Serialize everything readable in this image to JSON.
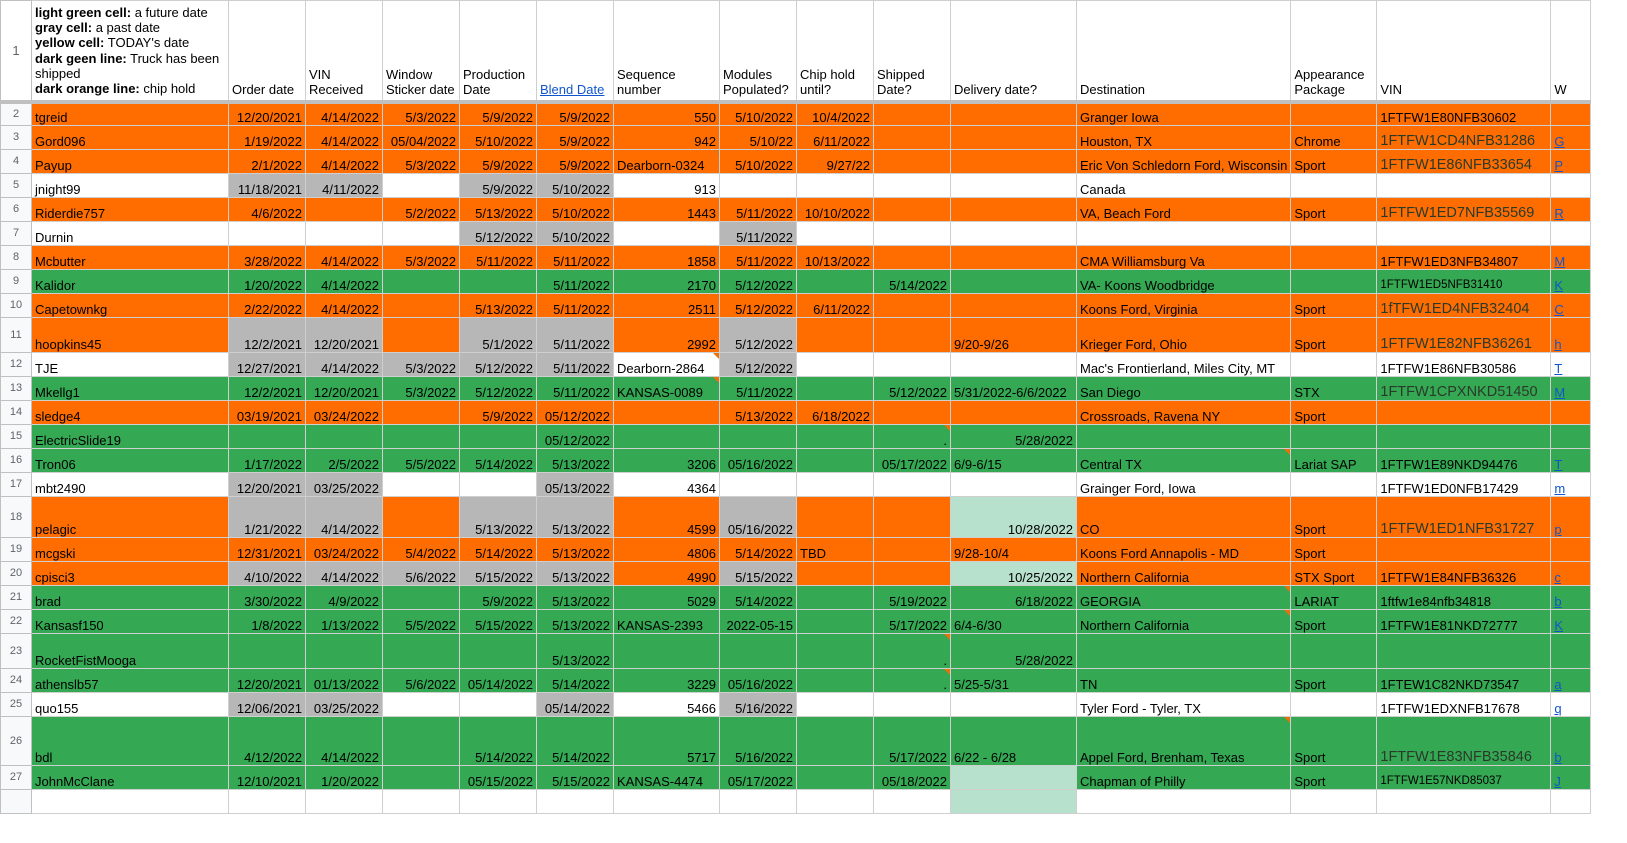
{
  "legend": [
    {
      "key": "light green cell:",
      "text": " a future date"
    },
    {
      "key": "gray cell:",
      "text": " a past date"
    },
    {
      "key": "yellow cell:",
      "text": " TODAY's date"
    },
    {
      "key": "dark geen line:",
      "text": " Truck has been shipped"
    },
    {
      "key": "dark orange line:",
      "text": " chip hold"
    }
  ],
  "headers": [
    "Order date",
    "VIN Received",
    "Window Sticker date",
    "Production Date",
    "Blend Date",
    "Sequence number",
    "Modules Populated?",
    "Chip hold until?",
    "Shipped Date?",
    "Delivery date?",
    "Destination",
    "Appearance Package",
    "VIN",
    "W"
  ],
  "colors": {
    "orange": "#ff6d01",
    "green": "#34a853",
    "gray": "#b7b7b7",
    "light_green": "#b7e1cd",
    "link": "#1155cc"
  },
  "rows": [
    {
      "num": "2",
      "style": "orange",
      "cells": [
        "tgreid",
        "12/20/2021",
        "4/14/2022",
        "5/3/2022",
        "5/9/2022",
        "5/9/2022",
        "550",
        "5/10/2022",
        "10/4/2022",
        "",
        "",
        "Granger Iowa",
        "",
        "1FTFW1E80NFB30602",
        ""
      ]
    },
    {
      "num": "3",
      "style": "orange",
      "cells": [
        "Gord096",
        "1/19/2022",
        "4/14/2022",
        "05/04/2022",
        "5/10/2022",
        "5/9/2022",
        "942",
        "5/10/22",
        "6/11/2022",
        "",
        "",
        "Houston, TX",
        "Chrome",
        "1FTFW1CD4NFB31286",
        "G"
      ]
    },
    {
      "num": "4",
      "style": "orange",
      "cells": [
        "Payup",
        "2/1/2022",
        "4/14/2022",
        "5/3/2022",
        "5/9/2022",
        "5/9/2022",
        "Dearborn-0324",
        "5/10/2022",
        "9/27/22",
        "",
        "",
        "Eric Von Schledorn Ford, Wisconsin",
        "Sport",
        "1FTFW1E86NFB33654",
        "P"
      ]
    },
    {
      "num": "5",
      "style": "white",
      "cells": [
        "jnight99",
        "11/18/2021",
        "4/11/2022",
        "",
        "5/9/2022",
        "5/10/2022",
        "913",
        "",
        "",
        "",
        "",
        "Canada",
        "",
        "",
        ""
      ]
    },
    {
      "num": "6",
      "style": "orange",
      "cells": [
        "Riderdie757",
        "4/6/2022",
        "",
        "5/2/2022",
        "5/13/2022",
        "5/10/2022",
        "1443",
        "5/11/2022",
        "10/10/2022",
        "",
        "",
        "VA, Beach Ford",
        "Sport",
        "1FTFW1ED7NFB35569",
        "R"
      ]
    },
    {
      "num": "7",
      "style": "white",
      "cells": [
        "Durnin",
        "",
        "",
        "",
        "5/12/2022",
        "5/10/2022",
        "",
        "5/11/2022",
        "",
        "",
        "",
        "",
        "",
        "",
        ""
      ]
    },
    {
      "num": "8",
      "style": "orange",
      "cells": [
        "Mcbutter",
        "3/28/2022",
        "4/14/2022",
        "5/3/2022",
        "5/11/2022",
        "5/11/2022",
        "1858",
        "5/11/2022",
        "10/13/2022",
        "",
        "",
        "CMA Williamsburg Va",
        "",
        "1FTFW1ED3NFB34807",
        "M"
      ]
    },
    {
      "num": "9",
      "style": "green",
      "cells": [
        "Kalidor",
        "1/20/2022",
        "4/14/2022",
        "",
        "",
        "5/11/2022",
        "2170",
        "5/12/2022",
        "",
        "5/14/2022",
        "",
        "VA- Koons Woodbridge",
        "",
        "1FTFW1ED5NFB31410",
        "K"
      ]
    },
    {
      "num": "10",
      "style": "orange",
      "cells": [
        "Capetownkg",
        "2/22/2022",
        "4/14/2022",
        "",
        "5/13/2022",
        "5/11/2022",
        "2511",
        "5/12/2022",
        "6/11/2022",
        "",
        "",
        "Koons Ford, Virginia",
        "Sport",
        "1fTFW1ED4NFB32404",
        "C"
      ]
    },
    {
      "num": "11",
      "style": "orange",
      "cells": [
        "hoopkins45",
        "12/2/2021",
        "12/20/2021",
        "",
        "5/1/2022",
        "5/11/2022",
        "2992",
        "5/12/2022",
        "",
        "",
        "9/20-9/26",
        "Krieger Ford, Ohio",
        "Sport",
        "1FTFW1E82NFB36261",
        "h"
      ]
    },
    {
      "num": "12",
      "style": "white",
      "cells": [
        "TJE",
        "12/27/2021",
        "4/14/2022",
        "5/3/2022",
        "5/12/2022",
        "5/11/2022",
        "Dearborn-2864",
        "5/12/2022",
        "",
        "",
        "",
        "Mac's Frontierland, Miles City, MT",
        "",
        "1FTFW1E86NFB30586",
        "T"
      ]
    },
    {
      "num": "13",
      "style": "green",
      "cells": [
        "Mkellg1",
        "12/2/2021",
        "12/20/2021",
        "5/3/2022",
        "5/12/2022",
        "5/11/2022",
        "KANSAS-0089",
        "5/11/2022",
        "",
        "5/12/2022",
        "5/31/2022-6/6/2022",
        "San Diego",
        "STX",
        "1FTFW1CPXNKD51450",
        "M"
      ]
    },
    {
      "num": "14",
      "style": "orange",
      "cells": [
        "sledge4",
        "03/19/2021",
        "03/24/2022",
        "",
        "5/9/2022",
        "05/12/2022",
        "",
        "5/13/2022",
        "6/18/2022",
        "",
        "",
        "Crossroads, Ravena NY",
        "Sport",
        "",
        ""
      ]
    },
    {
      "num": "15",
      "style": "green",
      "cells": [
        "ElectricSlide19",
        "",
        "",
        "",
        "",
        "05/12/2022",
        "",
        "",
        "",
        ".",
        "5/28/2022",
        "",
        "",
        "",
        ""
      ]
    },
    {
      "num": "16",
      "style": "green",
      "cells": [
        "Tron06",
        "1/17/2022",
        "2/5/2022",
        "5/5/2022",
        "5/14/2022",
        "5/13/2022",
        "3206",
        "05/16/2022",
        "",
        "05/17/2022",
        "6/9-6/15",
        "Central TX",
        "Lariat SAP",
        "1FTFW1E89NKD94476",
        "T"
      ]
    },
    {
      "num": "17",
      "style": "white",
      "cells": [
        "mbt2490",
        "12/20/2021",
        "03/25/2022",
        "",
        "",
        "05/13/2022",
        "4364",
        "",
        "",
        "",
        "",
        "Grainger Ford, Iowa",
        "",
        "1FTFW1ED0NFB17429",
        "m"
      ]
    },
    {
      "num": "18",
      "style": "orange",
      "cells": [
        "pelagic",
        "1/21/2022",
        "4/14/2022",
        "",
        "5/13/2022",
        "5/13/2022",
        "4599",
        "05/16/2022",
        "",
        "",
        "10/28/2022",
        "CO",
        "Sport",
        "1FTFW1ED1NFB31727",
        "p"
      ]
    },
    {
      "num": "19",
      "style": "orange",
      "cells": [
        "mcgski",
        "12/31/2021",
        "03/24/2022",
        "5/4/2022",
        "5/14/2022",
        "5/13/2022",
        "4806",
        "5/14/2022",
        "TBD",
        "",
        "9/28-10/4",
        "Koons Ford Annapolis - MD",
        "Sport",
        "",
        ""
      ]
    },
    {
      "num": "20",
      "style": "orange",
      "cells": [
        "cpisci3",
        "4/10/2022",
        "4/14/2022",
        "5/6/2022",
        "5/15/2022",
        "5/13/2022",
        "4990",
        "5/15/2022",
        "",
        "",
        "10/25/2022",
        "Northern California",
        "STX Sport",
        "1FTFW1E84NFB36326",
        "c"
      ]
    },
    {
      "num": "21",
      "style": "green",
      "cells": [
        "brad",
        "3/30/2022",
        "4/9/2022",
        "",
        "5/9/2022",
        "5/13/2022",
        "5029",
        "5/14/2022",
        "",
        "5/19/2022",
        "6/18/2022",
        "GEORGIA",
        "LARIAT",
        "1ftfw1e84nfb34818",
        "b"
      ]
    },
    {
      "num": "22",
      "style": "green",
      "cells": [
        "Kansasf150",
        "1/8/2022",
        "1/13/2022",
        "5/5/2022",
        "5/15/2022",
        "5/13/2022",
        "KANSAS-2393",
        "2022-05-15",
        "",
        "5/17/2022",
        "6/4-6/30",
        "Northern California",
        "Sport",
        "1FTFW1E81NKD72777",
        "K"
      ]
    },
    {
      "num": "23",
      "style": "green",
      "cells": [
        "RocketFistMooga",
        "",
        "",
        "",
        "",
        "5/13/2022",
        "",
        "",
        "",
        ".",
        "5/28/2022",
        "",
        "",
        "",
        ""
      ]
    },
    {
      "num": "24",
      "style": "green",
      "cells": [
        "athenslb57",
        "12/20/2021",
        "01/13/2022",
        "5/6/2022",
        "05/14/2022",
        "5/14/2022",
        "3229",
        "05/16/2022",
        "",
        ".",
        "5/25-5/31",
        "TN",
        "Sport",
        "1FTEW1C82NKD73547",
        "a"
      ]
    },
    {
      "num": "25",
      "style": "white",
      "cells": [
        "quo155",
        "12/06/2021",
        "03/25/2022",
        "",
        "",
        "05/14/2022",
        "5466",
        "5/16/2022",
        "",
        "",
        "",
        "Tyler Ford - Tyler, TX",
        "",
        "1FTFW1EDXNFB17678",
        "q"
      ]
    },
    {
      "num": "26",
      "style": "green",
      "cells": [
        "bdl",
        "4/12/2022",
        "4/14/2022",
        "",
        "5/14/2022",
        "5/14/2022",
        "5717",
        "5/16/2022",
        "",
        "5/17/2022",
        "6/22 - 6/28",
        "Appel Ford, Brenham, Texas",
        "Sport",
        "1FTFW1E83NFB35846",
        "b"
      ]
    },
    {
      "num": "27",
      "style": "green",
      "cells": [
        "JohnMcClane",
        "12/10/2021",
        "1/20/2022",
        "",
        "05/15/2022",
        "5/15/2022",
        "KANSAS-4474",
        "05/17/2022",
        "",
        "05/18/2022",
        "",
        "Chapman of Philly",
        "Sport",
        "1FTFW1E57NKD85037",
        "J"
      ]
    }
  ]
}
